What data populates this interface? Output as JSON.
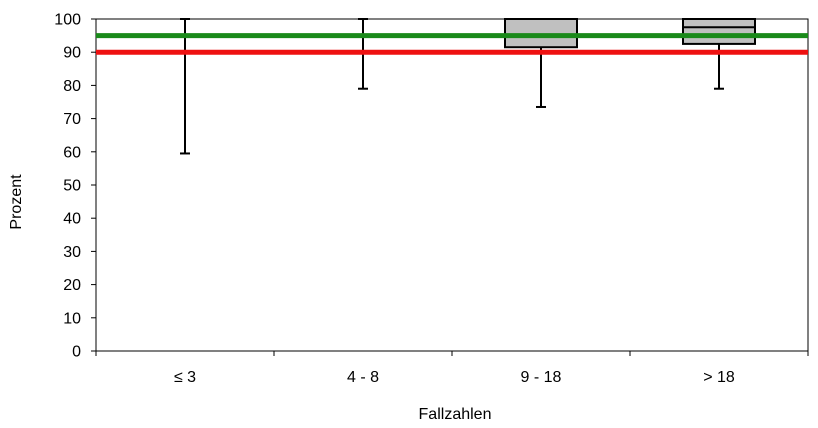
{
  "chart_data": {
    "type": "boxplot",
    "title": "",
    "xlabel": "Fallzahlen",
    "ylabel": "Prozent",
    "ylim": [
      0,
      100
    ],
    "yticks": [
      0,
      10,
      20,
      30,
      40,
      50,
      60,
      70,
      80,
      90,
      100
    ],
    "categories": [
      "≤ 3",
      "4 - 8",
      "9 - 18",
      "> 18"
    ],
    "boxes": [
      {
        "category": "≤ 3",
        "whisker_low": 59.5,
        "q1": 100,
        "median": 100,
        "q3": 100,
        "whisker_high": 100
      },
      {
        "category": "4 - 8",
        "whisker_low": 79,
        "q1": 100,
        "median": 100,
        "q3": 100,
        "whisker_high": 100
      },
      {
        "category": "9 - 18",
        "whisker_low": 73.5,
        "q1": 91.5,
        "median": 100,
        "q3": 100,
        "whisker_high": 100
      },
      {
        "category": "> 18",
        "whisker_low": 79,
        "q1": 92.5,
        "median": 97.5,
        "q3": 100,
        "whisker_high": 100
      }
    ],
    "reference_lines": [
      {
        "value": 95,
        "color": "#1a8a1a"
      },
      {
        "value": 90,
        "color": "#ee1111"
      }
    ],
    "box_fill": "#c0c0c0",
    "grid": false,
    "legend": "none"
  }
}
